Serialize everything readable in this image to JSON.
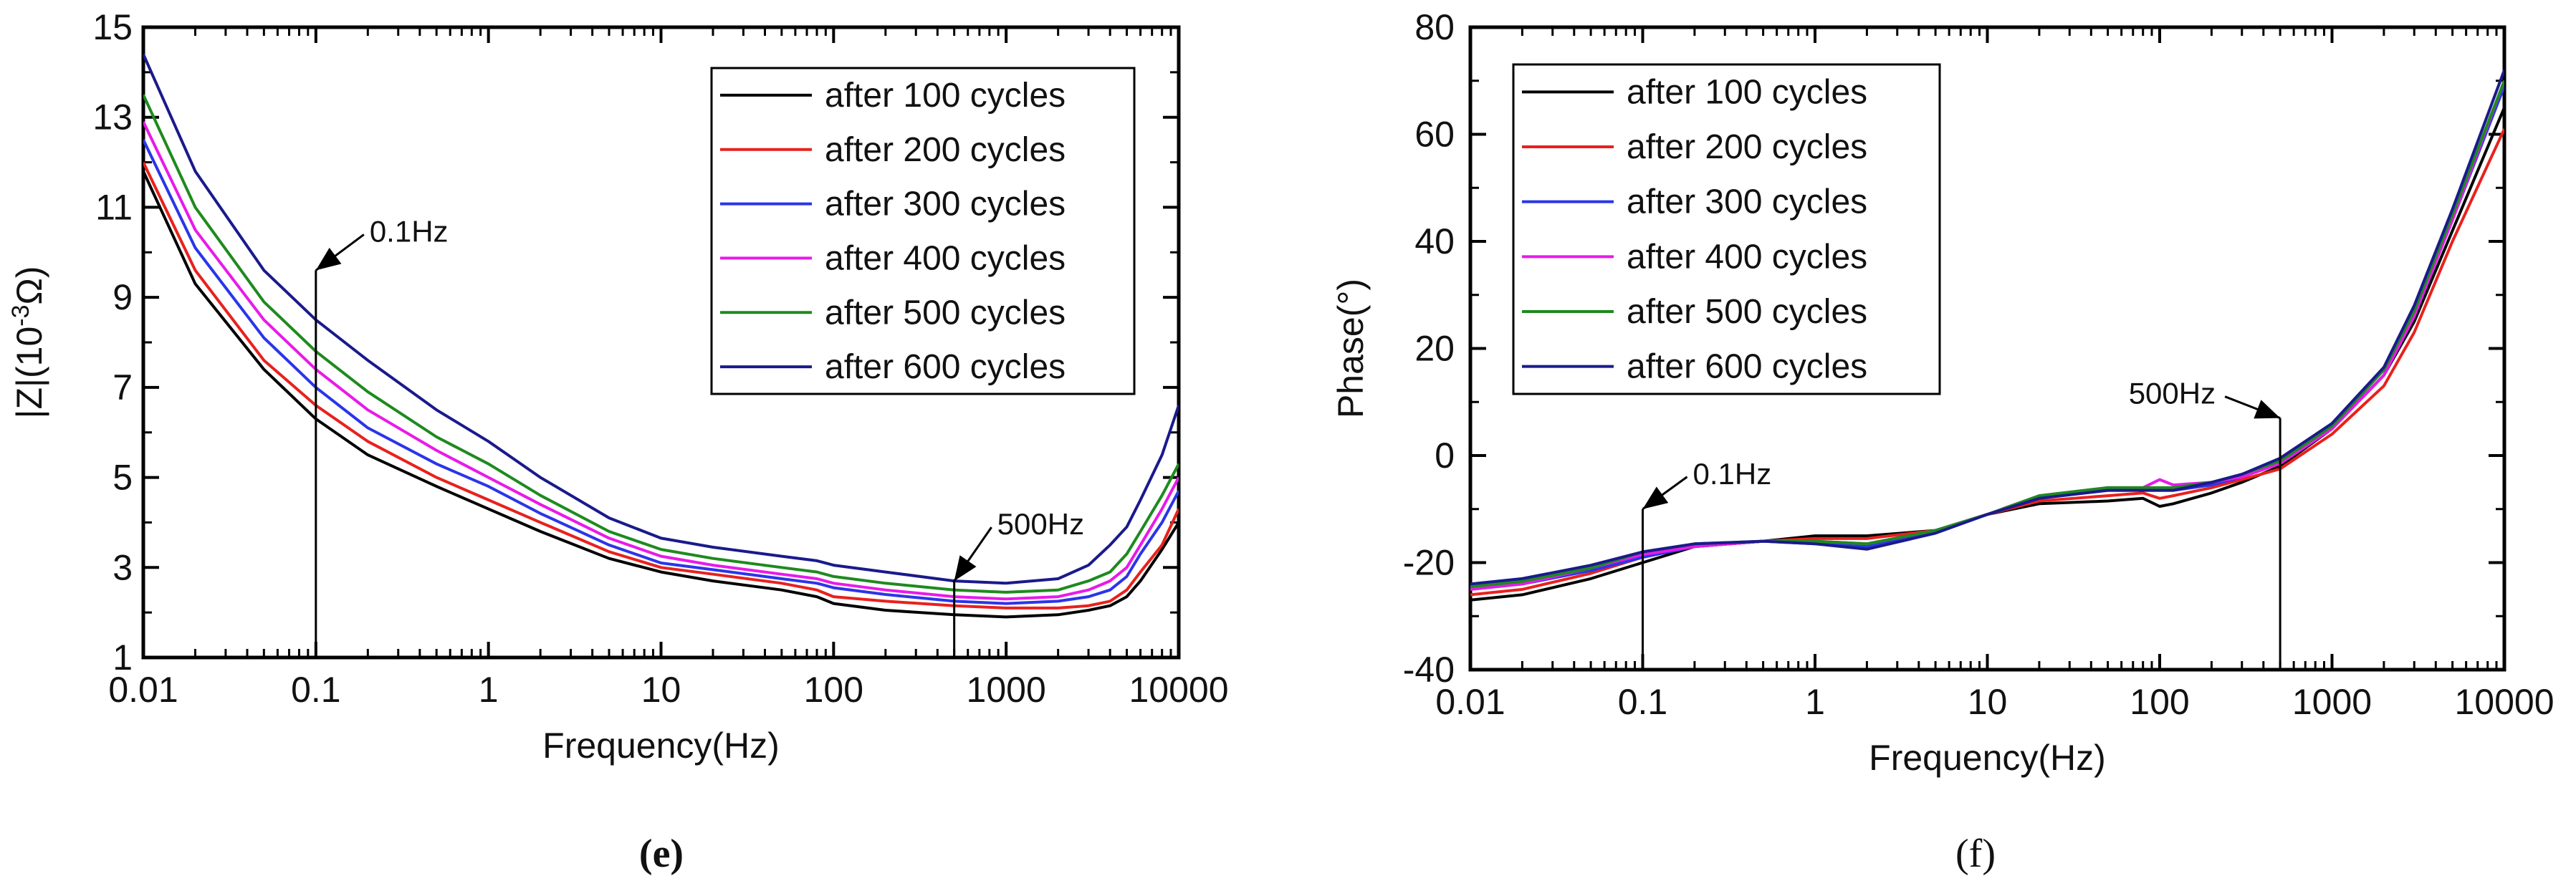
{
  "chart_data": [
    {
      "type": "line",
      "panel_label": "(e)",
      "xlabel": "Frequency(Hz)",
      "ylabel_parts": {
        "pre": "|Z|(10",
        "sup": "-3",
        "post": "Ω)"
      },
      "xscale": "log",
      "xlim": [
        0.01,
        10000
      ],
      "ylim": [
        1,
        15
      ],
      "xticks": [
        0.01,
        0.1,
        1,
        10,
        100,
        1000,
        10000
      ],
      "xtick_labels": [
        "0.01",
        "0.1",
        "1",
        "10",
        "100",
        "1000",
        "10000"
      ],
      "yticks": [
        1,
        3,
        5,
        7,
        9,
        11,
        13,
        15
      ],
      "ytick_labels": [
        "1",
        "3",
        "5",
        "7",
        "9",
        "11",
        "13",
        "15"
      ],
      "legend_position": "top-right",
      "annotations": [
        {
          "text": "0.1Hz",
          "x": 0.1,
          "y_line_top": 9.6
        },
        {
          "text": "500Hz",
          "x": 500,
          "y_line_top": 2.7
        }
      ],
      "x": [
        0.01,
        0.02,
        0.05,
        0.1,
        0.2,
        0.5,
        1,
        2,
        5,
        10,
        20,
        50,
        80,
        100,
        200,
        500,
        1000,
        2000,
        3000,
        4000,
        5000,
        6000,
        8000,
        10000
      ],
      "series": [
        {
          "name": "after 100 cycles",
          "color": "#000000",
          "values": [
            11.8,
            9.3,
            7.4,
            6.3,
            5.5,
            4.8,
            4.3,
            3.8,
            3.2,
            2.9,
            2.7,
            2.5,
            2.35,
            2.2,
            2.05,
            1.95,
            1.9,
            1.95,
            2.05,
            2.15,
            2.35,
            2.7,
            3.4,
            4.0
          ]
        },
        {
          "name": "after 200 cycles",
          "color": "#e8211d",
          "values": [
            12.0,
            9.6,
            7.6,
            6.6,
            5.8,
            5.0,
            4.5,
            4.0,
            3.35,
            3.0,
            2.85,
            2.65,
            2.5,
            2.35,
            2.25,
            2.15,
            2.1,
            2.1,
            2.15,
            2.25,
            2.5,
            2.9,
            3.5,
            4.3
          ]
        },
        {
          "name": "after 300 cycles",
          "color": "#2b35e8",
          "values": [
            12.5,
            10.1,
            8.1,
            7.0,
            6.1,
            5.3,
            4.8,
            4.2,
            3.5,
            3.1,
            2.95,
            2.75,
            2.65,
            2.55,
            2.4,
            2.25,
            2.2,
            2.25,
            2.35,
            2.5,
            2.8,
            3.3,
            4.0,
            4.7
          ]
        },
        {
          "name": "after 400 cycles",
          "color": "#e81ae8",
          "values": [
            12.9,
            10.5,
            8.5,
            7.4,
            6.5,
            5.6,
            5.0,
            4.4,
            3.65,
            3.25,
            3.05,
            2.85,
            2.75,
            2.65,
            2.5,
            2.35,
            2.3,
            2.35,
            2.5,
            2.7,
            3.0,
            3.5,
            4.3,
            5.0
          ]
        },
        {
          "name": "after 500 cycles",
          "color": "#1e8a1e",
          "values": [
            13.5,
            11.0,
            8.9,
            7.8,
            6.9,
            5.9,
            5.3,
            4.6,
            3.8,
            3.4,
            3.2,
            3.0,
            2.9,
            2.8,
            2.65,
            2.5,
            2.45,
            2.5,
            2.7,
            2.9,
            3.3,
            3.8,
            4.6,
            5.3
          ]
        },
        {
          "name": "after 600 cycles",
          "color": "#1a1a8c",
          "values": [
            14.4,
            11.8,
            9.6,
            8.5,
            7.6,
            6.5,
            5.8,
            5.0,
            4.1,
            3.65,
            3.45,
            3.25,
            3.15,
            3.05,
            2.9,
            2.7,
            2.65,
            2.75,
            3.05,
            3.5,
            3.9,
            4.5,
            5.5,
            6.6
          ]
        }
      ]
    },
    {
      "type": "line",
      "panel_label": "(f)",
      "xlabel": "Frequency(Hz)",
      "ylabel": "Phase(°)",
      "xscale": "log",
      "xlim": [
        0.01,
        10000
      ],
      "ylim": [
        -40,
        80
      ],
      "xticks": [
        0.01,
        0.1,
        1,
        10,
        100,
        1000,
        10000
      ],
      "xtick_labels": [
        "0.01",
        "0.1",
        "1",
        "10",
        "100",
        "1000",
        "10000"
      ],
      "yticks": [
        -40,
        -20,
        0,
        20,
        40,
        60,
        80
      ],
      "ytick_labels": [
        "-40",
        "-20",
        "0",
        "20",
        "40",
        "60",
        "80"
      ],
      "legend_position": "top-left",
      "annotations": [
        {
          "text": "0.1Hz",
          "x": 0.1,
          "y_line_top": -10
        },
        {
          "text": "500Hz",
          "x": 500,
          "y_line_top": 7
        }
      ],
      "x": [
        0.01,
        0.02,
        0.05,
        0.1,
        0.2,
        0.5,
        1,
        2,
        5,
        10,
        20,
        50,
        80,
        100,
        120,
        200,
        300,
        500,
        1000,
        2000,
        3000,
        5000,
        10000
      ],
      "series": [
        {
          "name": "after 100 cycles",
          "color": "#000000",
          "values": [
            -27,
            -26,
            -23,
            -20,
            -17,
            -16,
            -15,
            -15,
            -14,
            -11,
            -9,
            -8.5,
            -8,
            -9.5,
            -9,
            -7,
            -5,
            -2,
            5,
            15,
            25,
            42,
            65
          ]
        },
        {
          "name": "after 200 cycles",
          "color": "#e8211d",
          "values": [
            -26,
            -25,
            -22,
            -19,
            -17,
            -16,
            -15.5,
            -15.5,
            -14,
            -11,
            -8.5,
            -7.5,
            -7,
            -8,
            -7.5,
            -6,
            -4.5,
            -2.5,
            4,
            13,
            23,
            40,
            61
          ]
        },
        {
          "name": "after 300 cycles",
          "color": "#2b35e8",
          "values": [
            -25,
            -24,
            -21.5,
            -19,
            -17,
            -16,
            -16.5,
            -17,
            -14,
            -11,
            -8,
            -6.5,
            -6.5,
            -6.5,
            -6.5,
            -5.5,
            -4,
            -1.5,
            5,
            15,
            26,
            44,
            69
          ]
        },
        {
          "name": "after 400 cycles",
          "color": "#e81ae8",
          "values": [
            -25,
            -24,
            -21,
            -18.5,
            -17,
            -16,
            -16,
            -16.5,
            -14,
            -11,
            -7.5,
            -6,
            -6,
            -4.5,
            -5.5,
            -5,
            -4,
            -1.5,
            5,
            15,
            26,
            44,
            70
          ]
        },
        {
          "name": "after 500 cycles",
          "color": "#1e8a1e",
          "values": [
            -24.5,
            -23.5,
            -21,
            -18,
            -16.5,
            -16,
            -16,
            -16.5,
            -14,
            -11,
            -7.5,
            -6,
            -6,
            -6,
            -6,
            -5,
            -3.5,
            -1,
            5.5,
            16,
            27,
            45,
            70
          ]
        },
        {
          "name": "after 600 cycles",
          "color": "#1a1a8c",
          "values": [
            -24,
            -23,
            -20.5,
            -18,
            -16.5,
            -16,
            -16.5,
            -17.5,
            -14.5,
            -11,
            -8,
            -6.5,
            -6.5,
            -6.5,
            -6.5,
            -5,
            -3.5,
            -0.5,
            6,
            16.5,
            28,
            46,
            72
          ]
        }
      ]
    }
  ]
}
